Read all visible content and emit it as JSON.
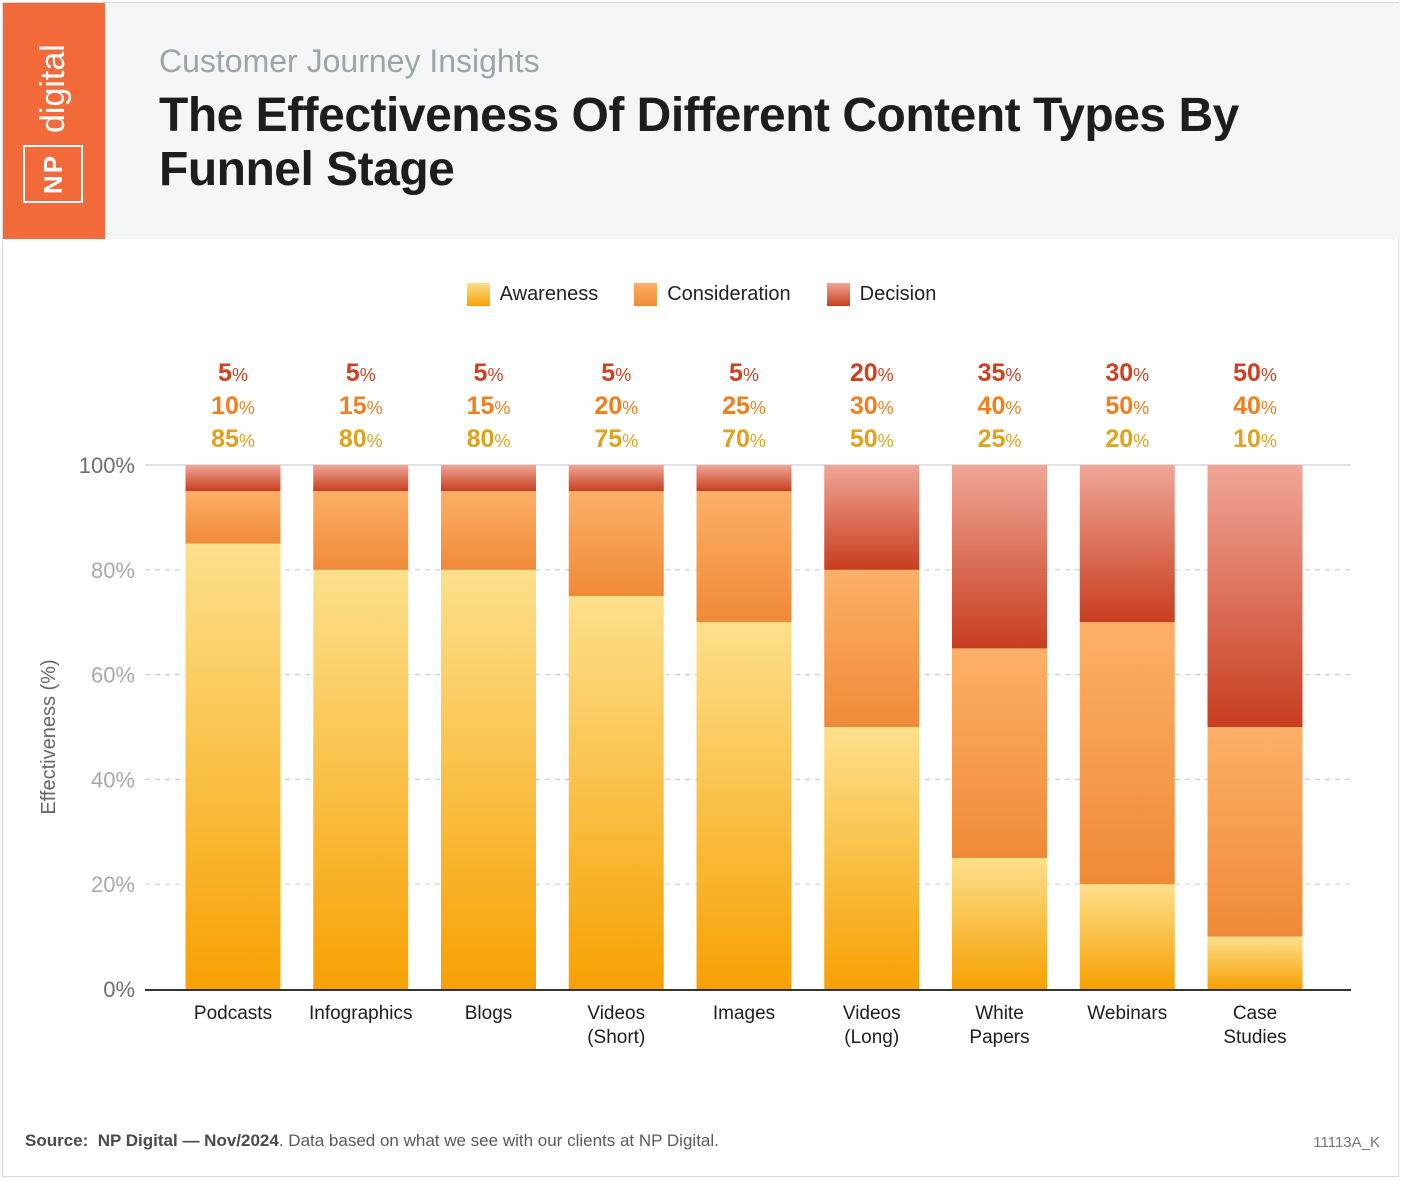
{
  "header": {
    "logo_np": "NP",
    "logo_digital": "digital",
    "subtitle": "Customer Journey Insights",
    "title": "The Effectiveness Of Different Content Types By Funnel Stage"
  },
  "footer": {
    "source_label": "Source:",
    "source_name": "NP Digital — Nov/2024",
    "source_note": ". Data based on what we see with our clients at NP Digital.",
    "code": "11113A_K"
  },
  "chart_data": {
    "type": "bar",
    "stacked": true,
    "title": "The Effectiveness Of Different Content Types By Funnel Stage",
    "subtitle": "Customer Journey Insights",
    "xlabel": "",
    "ylabel": "Effectiveness (%)",
    "ylim": [
      0,
      100
    ],
    "yticks": [
      0,
      20,
      40,
      60,
      80,
      100
    ],
    "ytick_labels": [
      "0%",
      "20%",
      "40%",
      "60%",
      "80%",
      "100%"
    ],
    "grid": true,
    "legend_position": "top-center",
    "categories": [
      [
        "Podcasts"
      ],
      [
        "Infographics"
      ],
      [
        "Blogs"
      ],
      [
        "Videos",
        "(Short)"
      ],
      [
        "Images"
      ],
      [
        "Videos",
        "(Long)"
      ],
      [
        "White",
        "Papers"
      ],
      [
        "Webinars"
      ],
      [
        "Case",
        "Studies"
      ]
    ],
    "series": [
      {
        "name": "Awareness",
        "color_top": "#fde08c",
        "color_bottom": "#f7a103",
        "label_color": "#e0a21a",
        "values": [
          85,
          80,
          80,
          75,
          70,
          50,
          25,
          20,
          10
        ]
      },
      {
        "name": "Consideration",
        "color_top": "#fdb068",
        "color_bottom": "#ef8a37",
        "label_color": "#f07f1e",
        "values": [
          10,
          15,
          15,
          20,
          25,
          30,
          40,
          50,
          40
        ]
      },
      {
        "name": "Decision",
        "color_top": "#f0a697",
        "color_bottom": "#c83d1f",
        "label_color": "#d13f1f",
        "values": [
          5,
          5,
          5,
          5,
          5,
          20,
          35,
          30,
          50
        ]
      }
    ]
  }
}
